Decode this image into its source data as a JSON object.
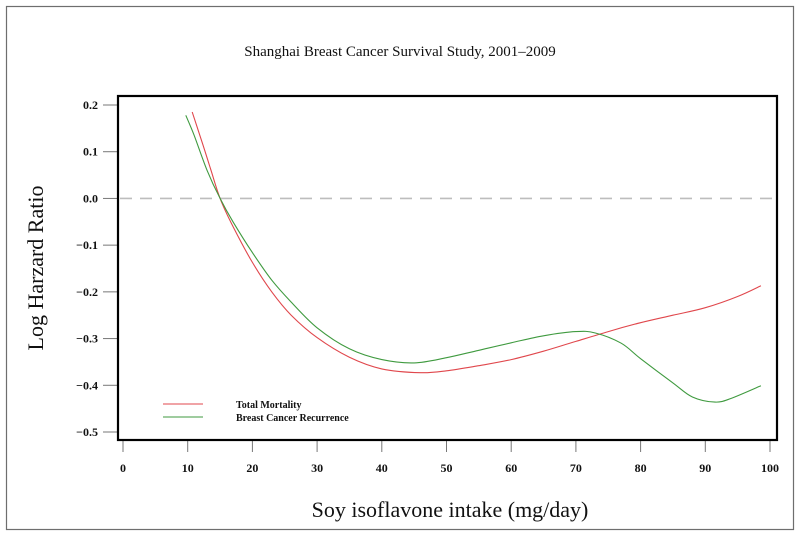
{
  "chart_data": {
    "type": "line",
    "title": "Shanghai Breast Cancer Survival Study, 2001‒2009",
    "xlabel": "Soy isoflavone intake (mg/day)",
    "ylabel": "Log Harzard Ratio",
    "xlim": [
      0,
      100
    ],
    "ylim": [
      -0.5,
      0.2
    ],
    "x_ticks": [
      0,
      10,
      20,
      30,
      40,
      50,
      60,
      70,
      80,
      90,
      100
    ],
    "x_tick_labels": [
      "0",
      "10",
      "20",
      "30",
      "40",
      "50",
      "60",
      "70",
      "80",
      "90",
      "100"
    ],
    "y_ticks": [
      0.2,
      0.1,
      0.0,
      -0.1,
      -0.2,
      -0.3,
      -0.4,
      -0.5
    ],
    "y_tick_labels": [
      "0.2",
      "0.1",
      "0.0",
      "−0.1",
      "−0.2",
      "−0.3",
      "−0.4",
      "−0.5"
    ],
    "reference_line": {
      "y": 0.0,
      "style": "dashed",
      "color": "#bdbdbd"
    },
    "grid": false,
    "legend": {
      "placement": "bottom-left"
    },
    "series": [
      {
        "name": "Total Mortality",
        "color": "#e0474c",
        "x": [
          10.7,
          12,
          13.5,
          15,
          17,
          20,
          23,
          26,
          30,
          35,
          40,
          46,
          50,
          55,
          60,
          65,
          70,
          75,
          80,
          85,
          90,
          95,
          98.6
        ],
        "y": [
          0.185,
          0.13,
          0.065,
          0.0,
          -0.06,
          -0.137,
          -0.2,
          -0.25,
          -0.298,
          -0.34,
          -0.365,
          -0.373,
          -0.369,
          -0.358,
          -0.345,
          -0.327,
          -0.306,
          -0.285,
          -0.266,
          -0.25,
          -0.234,
          -0.21,
          -0.187
        ]
      },
      {
        "name": "Breast Cancer Recurrence",
        "color": "#3f9a3f",
        "x": [
          9.7,
          11,
          13,
          15,
          17,
          20,
          23,
          26,
          30,
          35,
          40,
          45,
          50,
          55,
          60,
          65,
          70,
          73,
          77,
          80,
          85,
          88,
          91.5,
          94,
          98.6
        ],
        "y": [
          0.178,
          0.135,
          0.06,
          0.0,
          -0.05,
          -0.116,
          -0.175,
          -0.222,
          -0.277,
          -0.322,
          -0.345,
          -0.352,
          -0.341,
          -0.325,
          -0.309,
          -0.294,
          -0.285,
          -0.288,
          -0.31,
          -0.343,
          -0.395,
          -0.425,
          -0.436,
          -0.428,
          -0.401
        ]
      }
    ]
  }
}
